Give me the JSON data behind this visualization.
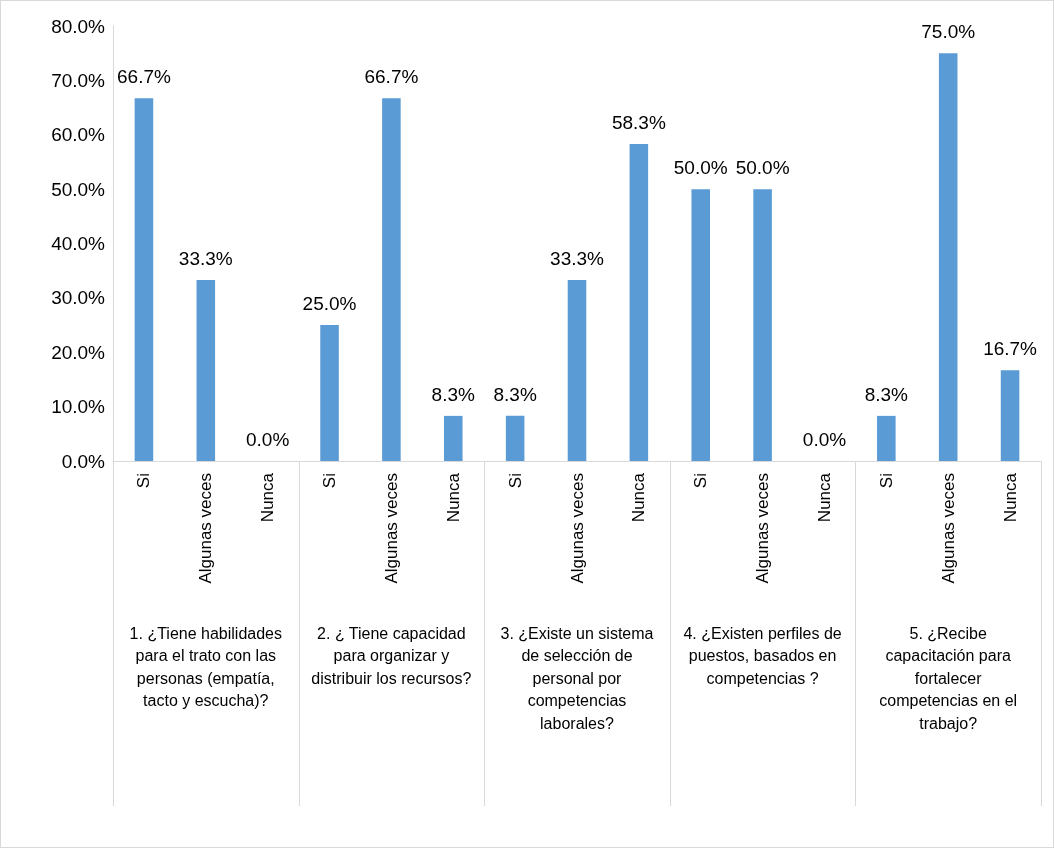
{
  "chart_data": {
    "type": "bar",
    "categories": [
      "Si",
      "Algunas veces",
      "Nunca",
      "Si",
      "Algunas veces",
      "Nunca",
      "Si",
      "Algunas veces",
      "Nunca",
      "Si",
      "Algunas veces",
      "Nunca",
      "Si",
      "Algunas veces",
      "Nunca"
    ],
    "values": [
      66.7,
      33.3,
      0.0,
      25.0,
      66.7,
      8.3,
      8.3,
      33.3,
      58.3,
      50.0,
      50.0,
      0.0,
      8.3,
      75.0,
      16.7
    ],
    "value_labels": [
      "66.7%",
      "33.3%",
      "0.0%",
      "25.0%",
      "66.7%",
      "8.3%",
      "8.3%",
      "33.3%",
      "58.3%",
      "50.0%",
      "50.0%",
      "0.0%",
      "8.3%",
      "75.0%",
      "16.7%"
    ],
    "color": "#5b9bd5",
    "ylim": [
      0,
      80
    ],
    "yticks": [
      {
        "value": 0,
        "label": "0.0%"
      },
      {
        "value": 10,
        "label": "10.0%"
      },
      {
        "value": 20,
        "label": "20.0%"
      },
      {
        "value": 30,
        "label": "30.0%"
      },
      {
        "value": 40,
        "label": "40.0%"
      },
      {
        "value": 50,
        "label": "50.0%"
      },
      {
        "value": 60,
        "label": "60.0%"
      },
      {
        "value": 70,
        "label": "70.0%"
      },
      {
        "value": 80,
        "label": "80.0%"
      }
    ],
    "annotations": [
      "1.   ¿Tiene habilidades para el trato con las personas (empatía, tacto y escucha)?",
      "2.   ¿ Tiene capacidad para organizar y distribuir los recursos?",
      "3.   ¿Existe un sistema de selección de personal por competencias laborales?",
      "4.   ¿Existen perfiles de puestos, basados en competencias ?",
      "5.   ¿Recibe capacitación para fortalecer competencias en el trabajo?"
    ],
    "grid": false
  }
}
